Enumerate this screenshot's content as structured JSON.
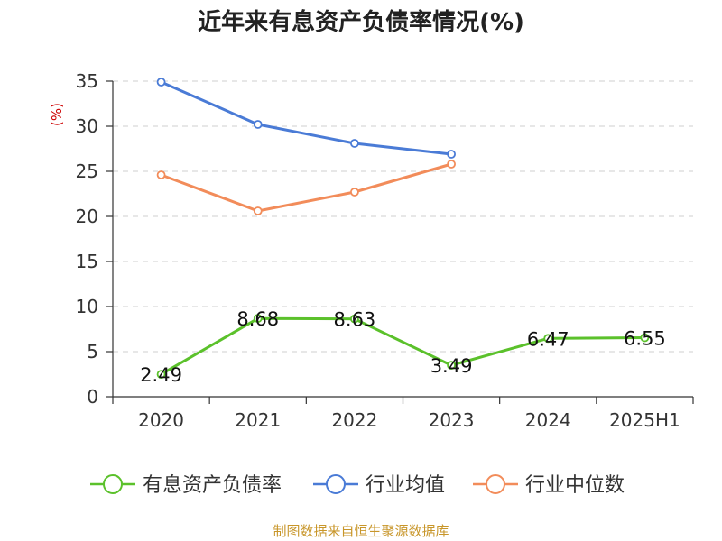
{
  "chart_data": {
    "type": "line",
    "title": "近年来有息资产负债率情况(%)",
    "y_unit": "(%)",
    "categories": [
      "2020",
      "2021",
      "2022",
      "2023",
      "2024",
      "2025H1"
    ],
    "ylim": [
      0,
      35
    ],
    "yticks": [
      0,
      5,
      10,
      15,
      20,
      25,
      30,
      35
    ],
    "grid": true,
    "legend_position": "bottom",
    "series": [
      {
        "name": "有息资产负债率",
        "color": "#5bc12b",
        "values": [
          2.49,
          8.68,
          8.63,
          3.49,
          6.47,
          6.55
        ],
        "labels": [
          "2.49",
          "8.68",
          "8.63",
          "3.49",
          "6.47",
          "6.55"
        ]
      },
      {
        "name": "行业均值",
        "color": "#4a7bd6",
        "values": [
          34.9,
          30.2,
          28.1,
          26.9,
          null,
          null
        ]
      },
      {
        "name": "行业中位数",
        "color": "#f28c5a",
        "values": [
          24.6,
          20.6,
          22.7,
          25.8,
          null,
          null
        ]
      }
    ],
    "source": "制图数据来自恒生聚源数据库"
  }
}
